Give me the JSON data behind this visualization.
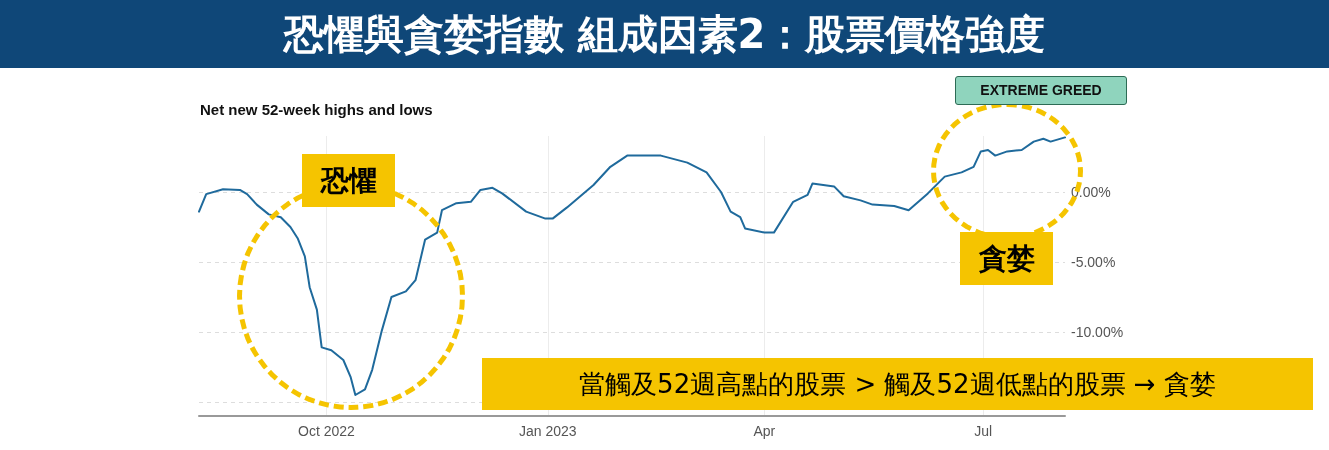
{
  "chart_data": {
    "type": "line",
    "title": "恐懼與貪婪指數 組成因素2：股票價格強度",
    "subtitle": "Net new 52-week highs and lows",
    "annotations": [
      "EXTREME GREED",
      "恐懼",
      "貪婪",
      "當觸及52週高點的股票 > 觸及52週低點的股票 → 貪婪"
    ],
    "x": [
      "2022-08-09",
      "2022-08-12",
      "2022-08-19",
      "2022-08-26",
      "2022-08-29",
      "2022-09-02",
      "2022-09-07",
      "2022-09-12",
      "2022-09-16",
      "2022-09-19",
      "2022-09-22",
      "2022-09-24",
      "2022-09-27",
      "2022-09-29",
      "2022-10-03",
      "2022-10-08",
      "2022-10-11",
      "2022-10-13",
      "2022-10-17",
      "2022-10-20",
      "2022-10-24",
      "2022-10-28",
      "2022-11-03",
      "2022-11-07",
      "2022-11-11",
      "2022-11-16",
      "2022-11-18",
      "2022-11-24",
      "2022-11-30",
      "2022-12-04",
      "2022-12-09",
      "2022-12-13",
      "2022-12-23",
      "2022-12-31",
      "2023-01-03",
      "2023-01-09",
      "2023-01-20",
      "2023-01-27",
      "2023-02-03",
      "2023-02-10",
      "2023-02-17",
      "2023-02-28",
      "2023-03-08",
      "2023-03-14",
      "2023-03-18",
      "2023-03-22",
      "2023-03-24",
      "2023-04-01",
      "2023-04-05",
      "2023-04-13",
      "2023-04-19",
      "2023-04-21",
      "2023-04-30",
      "2023-05-04",
      "2023-05-11",
      "2023-05-16",
      "2023-05-25",
      "2023-05-31",
      "2023-06-08",
      "2023-06-15",
      "2023-06-22",
      "2023-06-27",
      "2023-06-30",
      "2023-07-03",
      "2023-07-06",
      "2023-07-11",
      "2023-07-17",
      "2023-07-22",
      "2023-07-26",
      "2023-07-29",
      "2023-08-04"
    ],
    "series": [
      {
        "color": "#1f6a9c",
        "values": [
          -1.4,
          -0.15,
          0.2,
          0.15,
          -0.15,
          -0.9,
          -1.6,
          -1.8,
          -2.5,
          -3.3,
          -4.6,
          -6.8,
          -8.4,
          -11.1,
          -11.3,
          -12.0,
          -13.2,
          -14.5,
          -14.1,
          -12.7,
          -9.9,
          -7.5,
          -7.1,
          -6.3,
          -3.4,
          -2.9,
          -1.3,
          -0.8,
          -0.7,
          0.15,
          0.3,
          -0.1,
          -1.4,
          -1.9,
          -1.9,
          -1.1,
          0.5,
          1.8,
          2.6,
          2.6,
          2.6,
          2.1,
          1.4,
          0,
          -1.4,
          -1.8,
          -2.6,
          -2.9,
          -2.9,
          -0.7,
          -0.2,
          0.6,
          0.4,
          -0.3,
          -0.6,
          -0.9,
          -1.0,
          -1.3,
          -0.1,
          1.1,
          1.4,
          1.8,
          2.9,
          3.0,
          2.6,
          2.9,
          3.0,
          3.6,
          3.8,
          3.6,
          3.9
        ]
      }
    ],
    "xlim": [
      "2022-08-09",
      "2023-08-04"
    ],
    "xticks": [
      {
        "value": "2022-10-01",
        "label": "Oct 2022"
      },
      {
        "value": "2023-01-01",
        "label": "Jan 2023"
      },
      {
        "value": "2023-04-01",
        "label": "Apr"
      },
      {
        "value": "2023-07-01",
        "label": "Jul"
      }
    ],
    "ylim": [
      -16,
      4
    ],
    "yticks": [
      {
        "value": 0,
        "label": "0.00%"
      },
      {
        "value": -5,
        "label": "-5.00%"
      },
      {
        "value": -10,
        "label": "-10.00%"
      },
      {
        "value": -15,
        "label": null
      }
    ],
    "grid": true,
    "marker": "none",
    "line_style": "solid"
  }
}
